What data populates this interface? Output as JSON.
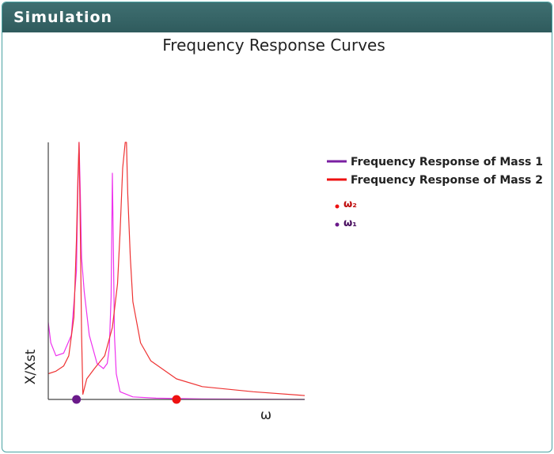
{
  "panel": {
    "title": "Simulation"
  },
  "chart_data": {
    "type": "line",
    "title": "Frequency Response Curves",
    "xlabel": "ω",
    "ylabel": "X/Xst",
    "xlim": [
      0,
      1
    ],
    "ylim": [
      0,
      1
    ],
    "grid": false,
    "legend_position": "right",
    "series": [
      {
        "name": "Frequency Response of Mass 1",
        "legend_color": "#7a1fa2",
        "color": "#ee33ee",
        "x": [
          0.0,
          0.01,
          0.03,
          0.06,
          0.09,
          0.11,
          0.115,
          0.12,
          0.125,
          0.13,
          0.14,
          0.16,
          0.19,
          0.215,
          0.23,
          0.238,
          0.245,
          0.25,
          0.253,
          0.258,
          0.265,
          0.28,
          0.33,
          0.42,
          0.6,
          1.0
        ],
        "y": [
          0.3,
          0.22,
          0.17,
          0.18,
          0.25,
          0.5,
          0.8,
          1.0,
          0.8,
          0.55,
          0.42,
          0.25,
          0.14,
          0.12,
          0.14,
          0.2,
          0.4,
          0.88,
          0.65,
          0.25,
          0.1,
          0.03,
          0.01,
          0.005,
          0.002,
          0.0
        ]
      },
      {
        "name": "Frequency Response of Mass 2",
        "legend_color": "#ee1111",
        "color": "#ee3333",
        "x": [
          0.0,
          0.03,
          0.06,
          0.08,
          0.1,
          0.11,
          0.115,
          0.12,
          0.125,
          0.13,
          0.135,
          0.15,
          0.18,
          0.22,
          0.25,
          0.27,
          0.28,
          0.29,
          0.3,
          0.305,
          0.31,
          0.32,
          0.33,
          0.36,
          0.4,
          0.5,
          0.6,
          0.8,
          1.0
        ],
        "y": [
          0.1,
          0.11,
          0.13,
          0.17,
          0.32,
          0.62,
          0.85,
          1.0,
          0.65,
          0.25,
          0.02,
          0.08,
          0.12,
          0.17,
          0.28,
          0.45,
          0.65,
          0.9,
          1.0,
          1.0,
          0.8,
          0.55,
          0.38,
          0.22,
          0.15,
          0.08,
          0.05,
          0.03,
          0.015
        ]
      }
    ],
    "markers": [
      {
        "label": "ω₂",
        "x": 0.5,
        "y": 0,
        "color": "#ee1111"
      },
      {
        "label": "ω₁",
        "x": 0.11,
        "y": 0,
        "color": "#6a1a8a"
      }
    ]
  }
}
